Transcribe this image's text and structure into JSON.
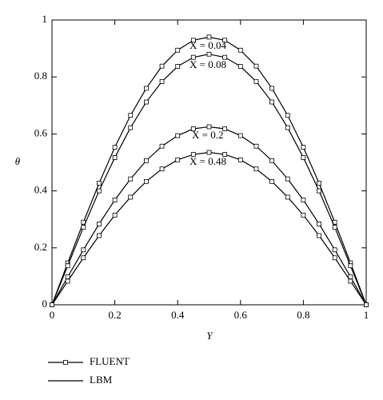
{
  "chart_data": {
    "type": "line",
    "xlabel": "Y",
    "ylabel": "θ",
    "x": [
      0,
      0.05,
      0.1,
      0.15,
      0.2,
      0.25,
      0.3,
      0.35,
      0.4,
      0.45,
      0.5,
      0.55,
      0.6,
      0.65,
      0.7,
      0.75,
      0.8,
      0.85,
      0.9,
      0.95,
      1
    ],
    "curves": [
      {
        "label": "X = 0.04",
        "values": [
          0,
          0.147,
          0.29,
          0.427,
          0.553,
          0.665,
          0.76,
          0.838,
          0.894,
          0.929,
          0.94,
          0.929,
          0.894,
          0.838,
          0.76,
          0.665,
          0.553,
          0.427,
          0.29,
          0.147,
          0
        ]
      },
      {
        "label": "X = 0.08",
        "values": [
          0,
          0.137,
          0.272,
          0.4,
          0.517,
          0.622,
          0.712,
          0.784,
          0.837,
          0.869,
          0.88,
          0.869,
          0.837,
          0.784,
          0.712,
          0.622,
          0.517,
          0.4,
          0.272,
          0.137,
          0
        ]
      },
      {
        "label": "X = 0.2",
        "values": [
          0,
          0.098,
          0.193,
          0.284,
          0.368,
          0.442,
          0.506,
          0.557,
          0.594,
          0.618,
          0.625,
          0.618,
          0.594,
          0.557,
          0.506,
          0.442,
          0.368,
          0.284,
          0.193,
          0.098,
          0
        ]
      },
      {
        "label": "X = 0.48",
        "values": [
          0,
          0.083,
          0.165,
          0.243,
          0.315,
          0.378,
          0.433,
          0.477,
          0.509,
          0.528,
          0.535,
          0.528,
          0.509,
          0.477,
          0.433,
          0.378,
          0.315,
          0.243,
          0.165,
          0.083,
          0
        ]
      }
    ],
    "legend": [
      {
        "name": "FLUENT",
        "marker": "square"
      },
      {
        "name": "LBM",
        "marker": "none"
      }
    ],
    "color": "#000000",
    "xlim": [
      0,
      1
    ],
    "xticks": [
      0,
      0.2,
      0.4,
      0.6,
      0.8,
      1
    ],
    "ylim": [
      0,
      1
    ],
    "yticks": [
      0,
      0.2,
      0.4,
      0.6,
      0.8,
      1
    ]
  }
}
